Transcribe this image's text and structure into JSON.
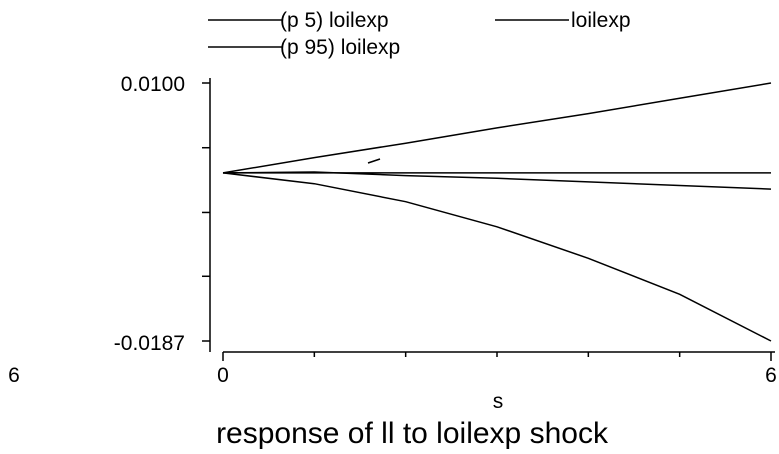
{
  "chart_data": {
    "type": "line",
    "title": "response of ll to loilexp shock",
    "xlabel": "s",
    "ylabel": "",
    "xlim": [
      0,
      6
    ],
    "ylim": [
      -0.0187,
      0.01
    ],
    "x_ticks": [
      0,
      1,
      2,
      3,
      4,
      5,
      6
    ],
    "x_tick_labels": [
      "0",
      "6"
    ],
    "y_ticks": [
      -0.0187,
      -0.0115,
      -0.0044,
      0.0028,
      0.01
    ],
    "y_tick_labels": [
      "-0.0187",
      "0.0100"
    ],
    "outer_label": "6",
    "grid": false,
    "legend_position": "top",
    "series": [
      {
        "name": "(p 5) loilexp",
        "x": [
          0,
          1,
          2,
          3,
          4,
          5,
          6
        ],
        "values": [
          0,
          -0.0012,
          -0.0032,
          -0.006,
          -0.0095,
          -0.0135,
          -0.0187
        ]
      },
      {
        "name": "loilexp",
        "x": [
          0,
          1,
          2,
          3,
          4,
          5,
          6
        ],
        "values": [
          0,
          0.0001,
          -0.0003,
          -0.0006,
          -0.001,
          -0.0014,
          -0.0018
        ]
      },
      {
        "name": "(p 95) loilexp",
        "x": [
          0,
          1,
          2,
          3,
          4,
          5,
          6
        ],
        "values": [
          0,
          0.0017,
          0.0033,
          0.005,
          0.0066,
          0.0083,
          0.01
        ]
      },
      {
        "name": "",
        "x": [
          0,
          6
        ],
        "values": [
          0,
          0
        ]
      }
    ]
  }
}
